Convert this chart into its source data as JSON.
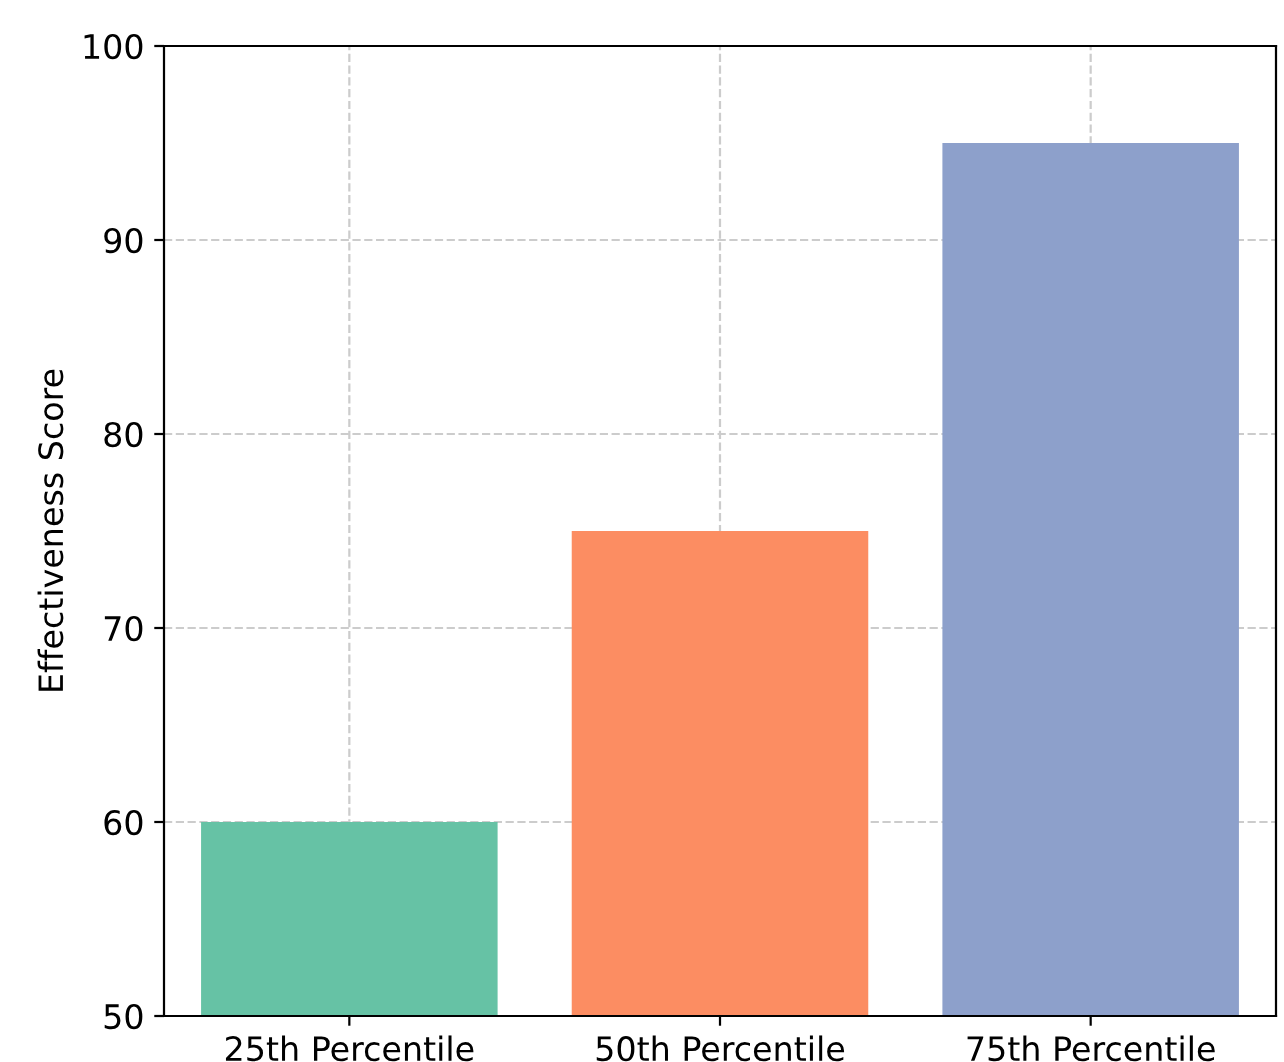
{
  "chart_data": {
    "type": "bar",
    "ylabel": "Effectiveness Score",
    "categories": [
      "25th Percentile",
      "50th Percentile",
      "75th Percentile"
    ],
    "values": [
      60,
      75,
      95
    ],
    "colors": [
      "#66c2a5",
      "#fc8d62",
      "#8da0cb"
    ],
    "ylim": [
      50,
      100
    ],
    "yticks": [
      50,
      60,
      70,
      80,
      90,
      100
    ],
    "grid": true
  }
}
